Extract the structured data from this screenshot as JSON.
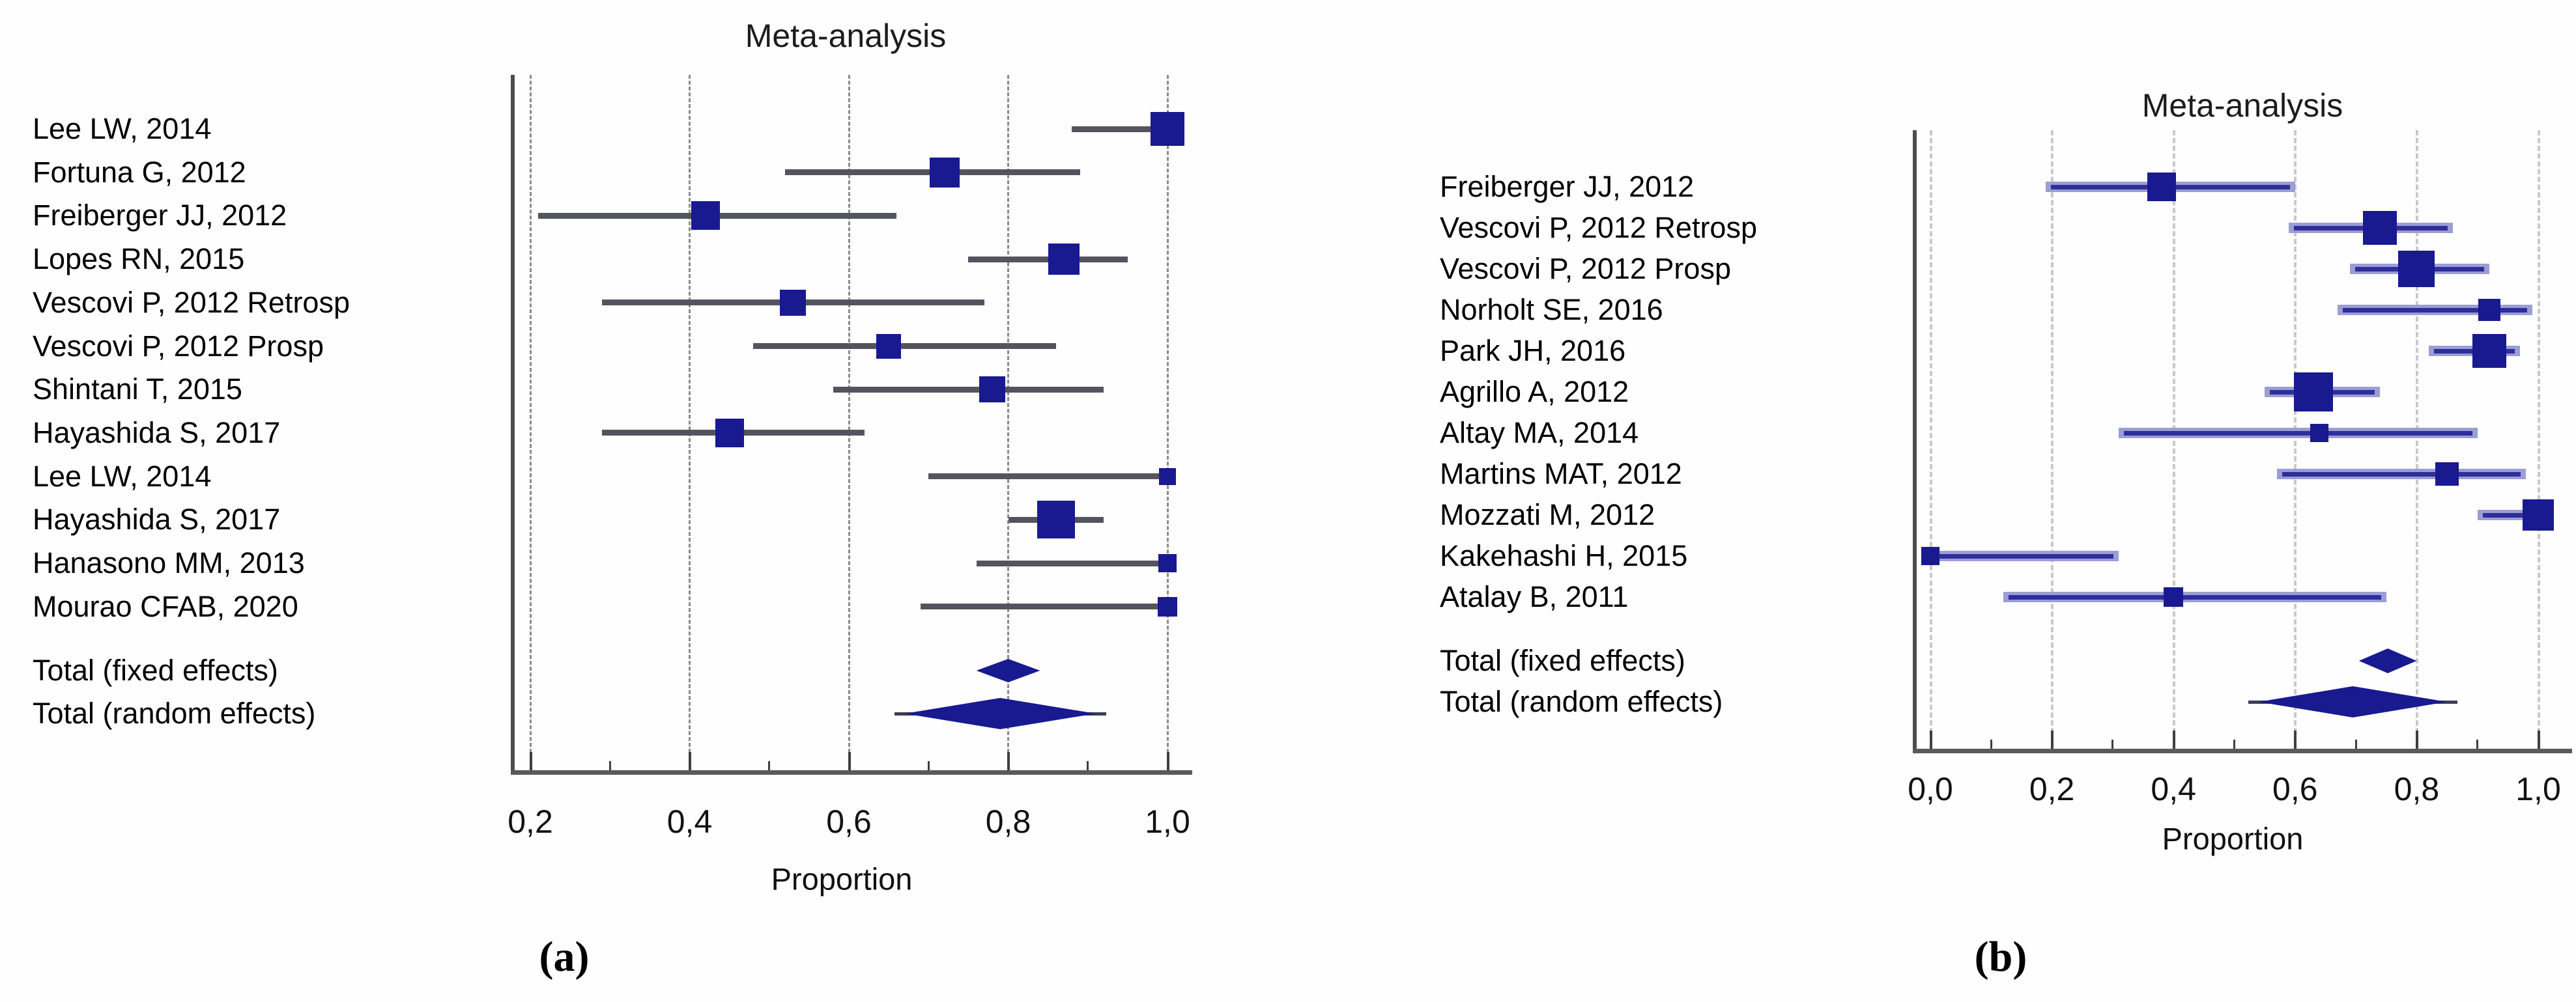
{
  "figure": {
    "captions": {
      "a": "(a)",
      "b": "(b)"
    }
  },
  "colors": {
    "marker_square": "#191990",
    "summary_diamond": "#191990",
    "ci_line_panel_a": "#54545f",
    "ci_line_panel_b_core": "#2e2e9b",
    "ci_line_panel_b_halo": "#9b9dd4",
    "gridline_panel_a": "#8c8c8c",
    "gridline_panel_b": "#c9c9c9",
    "axis": "#4d4d4d",
    "text": "#000000"
  },
  "chart_data": [
    {
      "type": "forest",
      "panel": "a",
      "title": "Meta-analysis",
      "xlabel": "Proportion",
      "axis": "proportion (0 to 1), decimal comma labels",
      "xlim": [
        0.17,
        1.03
      ],
      "grid": "dashed-vertical",
      "x_ticks": [
        {
          "value": 0.2,
          "label": "0,2"
        },
        {
          "value": 0.4,
          "label": "0,4"
        },
        {
          "value": 0.6,
          "label": "0,6"
        },
        {
          "value": 0.8,
          "label": "0,8"
        },
        {
          "value": 1.0,
          "label": "1,0"
        }
      ],
      "minor_ticks": [
        0.3,
        0.5,
        0.7,
        0.9
      ],
      "studies": [
        {
          "label": "Lee LW, 2014",
          "estimate": 1.0,
          "ci_low": 0.88,
          "ci_high": 1.0,
          "marker_size": 52
        },
        {
          "label": "Fortuna G, 2012",
          "estimate": 0.72,
          "ci_low": 0.52,
          "ci_high": 0.89,
          "marker_size": 46
        },
        {
          "label": "Freiberger JJ, 2012",
          "estimate": 0.42,
          "ci_low": 0.21,
          "ci_high": 0.66,
          "marker_size": 44
        },
        {
          "label": "Lopes RN, 2015",
          "estimate": 0.87,
          "ci_low": 0.75,
          "ci_high": 0.95,
          "marker_size": 48
        },
        {
          "label": "Vescovi P, 2012 Retrosp",
          "estimate": 0.53,
          "ci_low": 0.29,
          "ci_high": 0.77,
          "marker_size": 40
        },
        {
          "label": "Vescovi P, 2012 Prosp",
          "estimate": 0.65,
          "ci_low": 0.48,
          "ci_high": 0.86,
          "marker_size": 38
        },
        {
          "label": "Shintani T, 2015",
          "estimate": 0.78,
          "ci_low": 0.58,
          "ci_high": 0.92,
          "marker_size": 40
        },
        {
          "label": "Hayashida S, 2017",
          "estimate": 0.45,
          "ci_low": 0.29,
          "ci_high": 0.62,
          "marker_size": 44
        },
        {
          "label": "Lee LW, 2014",
          "estimate": 1.0,
          "ci_low": 0.7,
          "ci_high": 1.0,
          "marker_size": 26
        },
        {
          "label": "Hayashida S, 2017",
          "estimate": 0.86,
          "ci_low": 0.8,
          "ci_high": 0.92,
          "marker_size": 58
        },
        {
          "label": "Hanasono MM, 2013",
          "estimate": 1.0,
          "ci_low": 0.76,
          "ci_high": 1.0,
          "marker_size": 28
        },
        {
          "label": "Mourao CFAB, 2020",
          "estimate": 1.0,
          "ci_low": 0.69,
          "ci_high": 1.0,
          "marker_size": 30
        }
      ],
      "totals": [
        {
          "label": "Total (fixed effects)",
          "estimate": 0.81,
          "ci_low": 0.76,
          "ci_high": 0.84,
          "diamond_height": 36,
          "whisker": false
        },
        {
          "label": "Total (random effects)",
          "estimate": 0.8,
          "ci_low": 0.67,
          "ci_high": 0.91,
          "diamond_height": 48,
          "whisker": true
        }
      ]
    },
    {
      "type": "forest",
      "panel": "b",
      "title": "Meta-analysis",
      "xlabel": "Proportion",
      "axis": "proportion (0 to 1), decimal comma labels",
      "xlim": [
        -0.03,
        1.05
      ],
      "grid": "dashed-vertical-light",
      "x_ticks": [
        {
          "value": 0.0,
          "label": "0,0"
        },
        {
          "value": 0.2,
          "label": "0,2"
        },
        {
          "value": 0.4,
          "label": "0,4"
        },
        {
          "value": 0.6,
          "label": "0,6"
        },
        {
          "value": 0.8,
          "label": "0,8"
        },
        {
          "value": 1.0,
          "label": "1,0"
        }
      ],
      "minor_ticks": [
        0.1,
        0.3,
        0.5,
        0.7,
        0.9
      ],
      "studies": [
        {
          "label": "Freiberger JJ, 2012",
          "estimate": 0.38,
          "ci_low": 0.19,
          "ci_high": 0.6,
          "marker_size": 44
        },
        {
          "label": "Vescovi P, 2012 Retrosp",
          "estimate": 0.74,
          "ci_low": 0.59,
          "ci_high": 0.86,
          "marker_size": 52
        },
        {
          "label": "Vescovi P, 2012 Prosp",
          "estimate": 0.8,
          "ci_low": 0.69,
          "ci_high": 0.92,
          "marker_size": 56
        },
        {
          "label": "Norholt SE, 2016",
          "estimate": 0.92,
          "ci_low": 0.67,
          "ci_high": 0.99,
          "marker_size": 34
        },
        {
          "label": "Park JH, 2016",
          "estimate": 0.92,
          "ci_low": 0.82,
          "ci_high": 0.97,
          "marker_size": 52
        },
        {
          "label": "Agrillo A, 2012",
          "estimate": 0.63,
          "ci_low": 0.55,
          "ci_high": 0.74,
          "marker_size": 60
        },
        {
          "label": "Altay MA, 2014",
          "estimate": 0.64,
          "ci_low": 0.31,
          "ci_high": 0.9,
          "marker_size": 28
        },
        {
          "label": "Martins MAT, 2012",
          "estimate": 0.85,
          "ci_low": 0.57,
          "ci_high": 0.98,
          "marker_size": 36
        },
        {
          "label": "Mozzati M, 2012",
          "estimate": 1.0,
          "ci_low": 0.9,
          "ci_high": 1.0,
          "marker_size": 48
        },
        {
          "label": "Kakehashi H, 2015",
          "estimate": 0.0,
          "ci_low": 0.0,
          "ci_high": 0.31,
          "marker_size": 28
        },
        {
          "label": "Atalay B, 2011",
          "estimate": 0.4,
          "ci_low": 0.12,
          "ci_high": 0.75,
          "marker_size": 30
        }
      ],
      "totals": [
        {
          "label": "Total (fixed effects)",
          "estimate": 0.755,
          "ci_low": 0.705,
          "ci_high": 0.8,
          "diamond_height": 38,
          "whisker": false
        },
        {
          "label": "Total (random effects)",
          "estimate": 0.695,
          "ci_low": 0.54,
          "ci_high": 0.85,
          "diamond_height": 48,
          "whisker": true
        }
      ]
    }
  ]
}
